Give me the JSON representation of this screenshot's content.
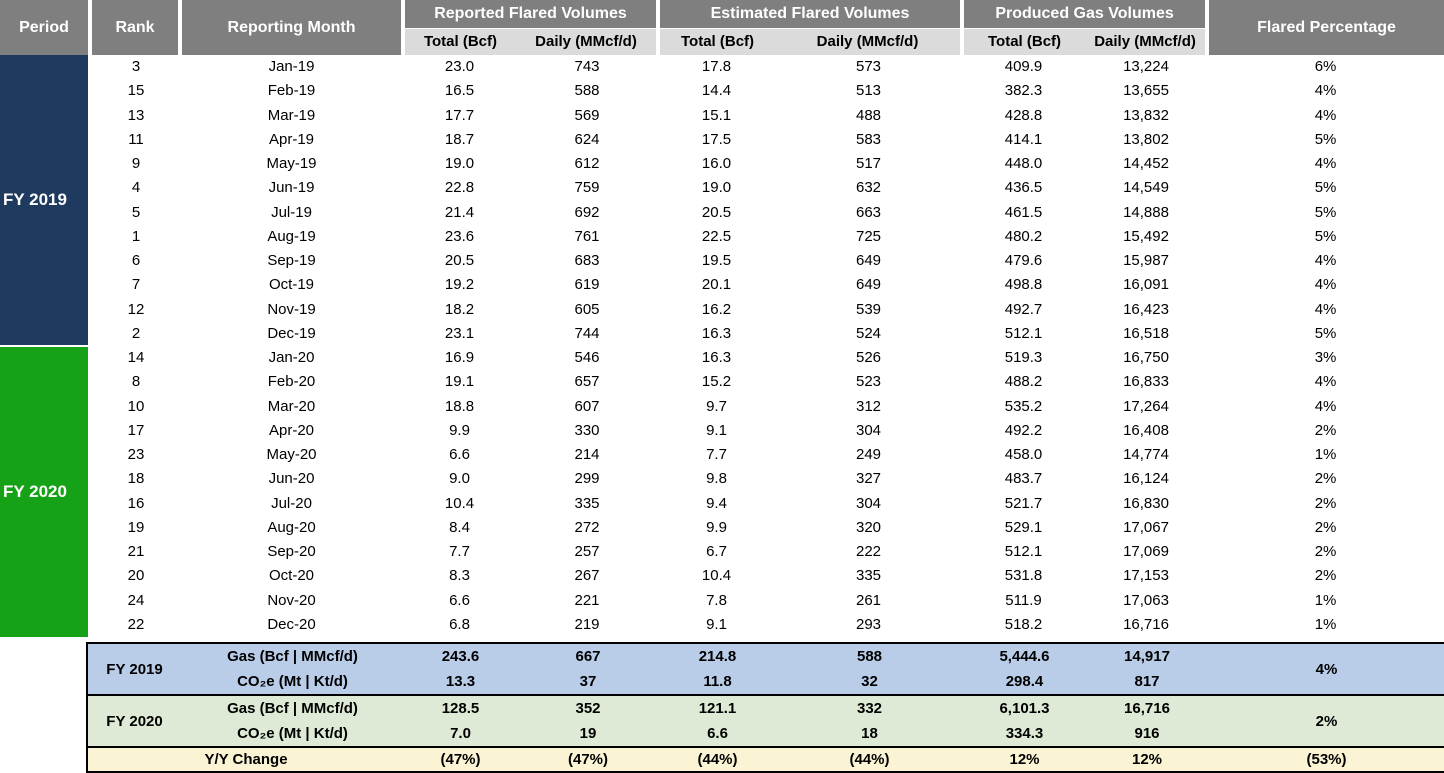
{
  "header": {
    "period": "Period",
    "rank": "Rank",
    "month": "Reporting Month",
    "groups": [
      {
        "label": "Reported Flared Volumes",
        "sub": [
          "Total (Bcf)",
          "Daily (MMcf/d)"
        ]
      },
      {
        "label": "Estimated Flared Volumes",
        "sub": [
          "Total (Bcf)",
          "Daily (MMcf/d)"
        ]
      },
      {
        "label": "Produced Gas Volumes",
        "sub": [
          "Total (Bcf)",
          "Daily (MMcf/d)"
        ]
      }
    ],
    "flared_pct": "Flared Percentage"
  },
  "colors": {
    "header_gray": "#7F7F7F",
    "subheader_gray": "#DBDBDB",
    "fy2019_navy": "#1E3A5E",
    "fy2020_green": "#16A216",
    "summary_blue": "#B9CDE9",
    "summary_green": "#DEEAD5",
    "summary_yellow": "#FAF3D4"
  },
  "chart_data": {
    "type": "table",
    "columns": [
      "Period",
      "Rank",
      "Reporting Month",
      "Reported Total (Bcf)",
      "Reported Daily (MMcf/d)",
      "Estimated Total (Bcf)",
      "Estimated Daily (MMcf/d)",
      "Produced Total (Bcf)",
      "Produced Daily (MMcf/d)",
      "Flared Percentage"
    ],
    "periods": [
      {
        "label": "FY 2019",
        "color": "#1E3A5E",
        "rows": [
          [
            "3",
            "Jan-19",
            "23.0",
            "743",
            "17.8",
            "573",
            "409.9",
            "13,224",
            "6%"
          ],
          [
            "15",
            "Feb-19",
            "16.5",
            "588",
            "14.4",
            "513",
            "382.3",
            "13,655",
            "4%"
          ],
          [
            "13",
            "Mar-19",
            "17.7",
            "569",
            "15.1",
            "488",
            "428.8",
            "13,832",
            "4%"
          ],
          [
            "11",
            "Apr-19",
            "18.7",
            "624",
            "17.5",
            "583",
            "414.1",
            "13,802",
            "5%"
          ],
          [
            "9",
            "May-19",
            "19.0",
            "612",
            "16.0",
            "517",
            "448.0",
            "14,452",
            "4%"
          ],
          [
            "4",
            "Jun-19",
            "22.8",
            "759",
            "19.0",
            "632",
            "436.5",
            "14,549",
            "5%"
          ],
          [
            "5",
            "Jul-19",
            "21.4",
            "692",
            "20.5",
            "663",
            "461.5",
            "14,888",
            "5%"
          ],
          [
            "1",
            "Aug-19",
            "23.6",
            "761",
            "22.5",
            "725",
            "480.2",
            "15,492",
            "5%"
          ],
          [
            "6",
            "Sep-19",
            "20.5",
            "683",
            "19.5",
            "649",
            "479.6",
            "15,987",
            "4%"
          ],
          [
            "7",
            "Oct-19",
            "19.2",
            "619",
            "20.1",
            "649",
            "498.8",
            "16,091",
            "4%"
          ],
          [
            "12",
            "Nov-19",
            "18.2",
            "605",
            "16.2",
            "539",
            "492.7",
            "16,423",
            "4%"
          ],
          [
            "2",
            "Dec-19",
            "23.1",
            "744",
            "16.3",
            "524",
            "512.1",
            "16,518",
            "5%"
          ]
        ]
      },
      {
        "label": "FY 2020",
        "color": "#16A216",
        "rows": [
          [
            "14",
            "Jan-20",
            "16.9",
            "546",
            "16.3",
            "526",
            "519.3",
            "16,750",
            "3%"
          ],
          [
            "8",
            "Feb-20",
            "19.1",
            "657",
            "15.2",
            "523",
            "488.2",
            "16,833",
            "4%"
          ],
          [
            "10",
            "Mar-20",
            "18.8",
            "607",
            "9.7",
            "312",
            "535.2",
            "17,264",
            "4%"
          ],
          [
            "17",
            "Apr-20",
            "9.9",
            "330",
            "9.1",
            "304",
            "492.2",
            "16,408",
            "2%"
          ],
          [
            "23",
            "May-20",
            "6.6",
            "214",
            "7.7",
            "249",
            "458.0",
            "14,774",
            "1%"
          ],
          [
            "18",
            "Jun-20",
            "9.0",
            "299",
            "9.8",
            "327",
            "483.7",
            "16,124",
            "2%"
          ],
          [
            "16",
            "Jul-20",
            "10.4",
            "335",
            "9.4",
            "304",
            "521.7",
            "16,830",
            "2%"
          ],
          [
            "19",
            "Aug-20",
            "8.4",
            "272",
            "9.9",
            "320",
            "529.1",
            "17,067",
            "2%"
          ],
          [
            "21",
            "Sep-20",
            "7.7",
            "257",
            "6.7",
            "222",
            "512.1",
            "17,069",
            "2%"
          ],
          [
            "20",
            "Oct-20",
            "8.3",
            "267",
            "10.4",
            "335",
            "531.8",
            "17,153",
            "2%"
          ],
          [
            "24",
            "Nov-20",
            "6.6",
            "221",
            "7.8",
            "261",
            "511.9",
            "17,063",
            "1%"
          ],
          [
            "22",
            "Dec-20",
            "6.8",
            "219",
            "9.1",
            "293",
            "518.2",
            "16,716",
            "1%"
          ]
        ]
      }
    ],
    "summary": {
      "fy2019": {
        "label": "FY 2019",
        "bg": "#B9CDE9",
        "gas_label": "Gas (Bcf | MMcf/d)",
        "gas": [
          "243.6",
          "667",
          "214.8",
          "588",
          "5,444.6",
          "14,917"
        ],
        "gas_pct": "4%",
        "co2_label": "CO₂e (Mt | Kt/d)",
        "co2": [
          "13.3",
          "37",
          "11.8",
          "32",
          "298.4",
          "817"
        ]
      },
      "fy2020": {
        "label": "FY 2020",
        "bg": "#DEEAD5",
        "gas_label": "Gas (Bcf | MMcf/d)",
        "gas": [
          "128.5",
          "352",
          "121.1",
          "332",
          "6,101.3",
          "16,716"
        ],
        "gas_pct": "2%",
        "co2_label": "CO₂e (Mt | Kt/d)",
        "co2": [
          "7.0",
          "19",
          "6.6",
          "18",
          "334.3",
          "916"
        ]
      },
      "yoy": {
        "label": "Y/Y Change",
        "bg": "#FAF3D4",
        "values": [
          "(47%)",
          "(47%)",
          "(44%)",
          "(44%)",
          "12%",
          "12%",
          "(53%)"
        ]
      }
    }
  }
}
